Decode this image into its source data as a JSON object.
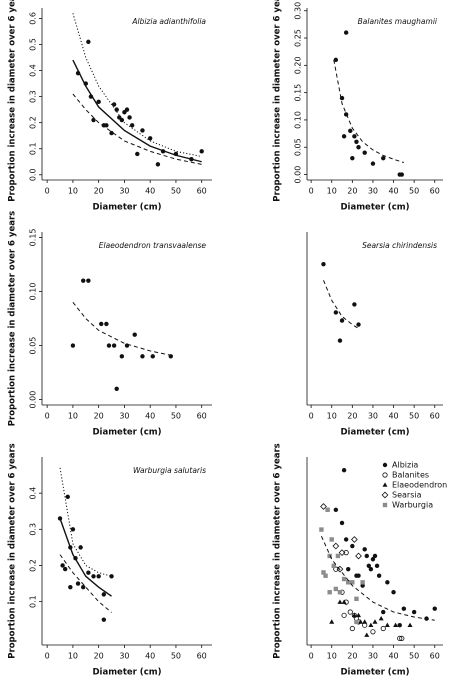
{
  "chart_data": [
    {
      "type": "scatter",
      "title": "Albizia adianthifolia",
      "xlabel": "Diameter (cm)",
      "ylabel": "Proportion increase in diameter over 6 years",
      "xlim": [
        -2,
        64
      ],
      "xticks": [
        0,
        10,
        20,
        30,
        40,
        50,
        60
      ],
      "ylim": [
        -0.02,
        0.64
      ],
      "yticks": [
        {
          "value": 0,
          "label": "0.0"
        },
        {
          "value": 0.1,
          "label": "0.1"
        },
        {
          "value": 0.2,
          "label": "0.2"
        },
        {
          "value": 0.3,
          "label": "0.3"
        },
        {
          "value": 0.4,
          "label": "0.4"
        },
        {
          "value": 0.5,
          "label": "0.5"
        },
        {
          "value": 0.6,
          "label": "0.6"
        }
      ],
      "series": [
        {
          "marker": "dot",
          "color": "#111111",
          "x": [
            12,
            15,
            16,
            17,
            18,
            20,
            22,
            23,
            25,
            26,
            27,
            28,
            29,
            30,
            31,
            32,
            33,
            35,
            37,
            40,
            43,
            45,
            50,
            56,
            60
          ],
          "values": [
            0.39,
            0.35,
            0.51,
            0.3,
            0.21,
            0.28,
            0.19,
            0.19,
            0.16,
            0.27,
            0.25,
            0.22,
            0.21,
            0.24,
            0.25,
            0.22,
            0.19,
            0.08,
            0.17,
            0.14,
            0.04,
            0.09,
            0.08,
            0.06,
            0.09
          ]
        },
        {
          "line": "solid",
          "color": "#111111",
          "x": [
            10,
            15,
            20,
            30,
            40,
            50,
            60
          ],
          "values": [
            0.44,
            0.34,
            0.26,
            0.17,
            0.11,
            0.075,
            0.05
          ]
        },
        {
          "line": "dotted",
          "color": "#111111",
          "x": [
            10,
            15,
            20,
            30,
            40,
            50,
            60
          ],
          "values": [
            0.62,
            0.45,
            0.34,
            0.2,
            0.13,
            0.09,
            0.07
          ]
        },
        {
          "line": "dashed",
          "color": "#111111",
          "x": [
            10,
            15,
            20,
            30,
            40,
            50,
            60
          ],
          "values": [
            0.31,
            0.25,
            0.2,
            0.13,
            0.09,
            0.06,
            0.04
          ]
        }
      ]
    },
    {
      "type": "scatter",
      "title": "Balanites maughamii",
      "xlabel": "Diameter (cm)",
      "ylabel": "Proportion increase in diameter over 6 years",
      "xlim": [
        -2,
        64
      ],
      "xticks": [
        0,
        10,
        20,
        30,
        40,
        50,
        60
      ],
      "ylim": [
        -0.01,
        0.305
      ],
      "yticks": [
        {
          "value": 0,
          "label": "0.00"
        },
        {
          "value": 0.05,
          "label": "0.05"
        },
        {
          "value": 0.1,
          "label": "0.10"
        },
        {
          "value": 0.15,
          "label": "0.15"
        },
        {
          "value": 0.2,
          "label": "0.20"
        },
        {
          "value": 0.25,
          "label": "0.25"
        },
        {
          "value": 0.3,
          "label": "0.30"
        }
      ],
      "series": [
        {
          "marker": "dot",
          "color": "#111111",
          "x": [
            12,
            15,
            16,
            17,
            17,
            19,
            20,
            21,
            22,
            23,
            26,
            30,
            35,
            43,
            44
          ],
          "values": [
            0.21,
            0.14,
            0.07,
            0.11,
            0.26,
            0.08,
            0.03,
            0.07,
            0.06,
            0.05,
            0.04,
            0.02,
            0.03,
            0,
            0
          ]
        },
        {
          "line": "dashed",
          "color": "#111111",
          "x": [
            11,
            15,
            20,
            25,
            30,
            35,
            40,
            45
          ],
          "values": [
            0.21,
            0.13,
            0.085,
            0.06,
            0.045,
            0.035,
            0.028,
            0.022
          ]
        }
      ]
    },
    {
      "type": "scatter",
      "title": "Elaeodendron transvaalense",
      "xlabel": "Diameter  (cm)",
      "ylabel": "Proportion increase in diameter over 6 years",
      "xlim": [
        -2,
        64
      ],
      "xticks": [
        0,
        10,
        20,
        30,
        40,
        50,
        60
      ],
      "ylim": [
        -0.005,
        0.155
      ],
      "yticks": [
        {
          "value": 0,
          "label": "0.00"
        },
        {
          "value": 0.05,
          "label": "0.05"
        },
        {
          "value": 0.1,
          "label": "0.10"
        },
        {
          "value": 0.15,
          "label": "0.15"
        }
      ],
      "series": [
        {
          "marker": "dot",
          "color": "#111111",
          "x": [
            10,
            14,
            16,
            21,
            23,
            24,
            26,
            27,
            29,
            31,
            34,
            37,
            41,
            48
          ],
          "values": [
            0.05,
            0.11,
            0.11,
            0.07,
            0.07,
            0.05,
            0.05,
            0.01,
            0.04,
            0.05,
            0.06,
            0.04,
            0.04,
            0.04
          ]
        },
        {
          "line": "dashed",
          "color": "#111111",
          "x": [
            10,
            15,
            20,
            30,
            40,
            48
          ],
          "values": [
            0.09,
            0.075,
            0.064,
            0.052,
            0.045,
            0.041
          ]
        }
      ]
    },
    {
      "type": "scatter",
      "title": "Searsia chirindensis",
      "xlabel": "Diameter  (cm)",
      "xlim": [
        -2,
        64
      ],
      "xticks": [
        0,
        10,
        20,
        30,
        40,
        50,
        60
      ],
      "ylim": [
        0.05,
        0.48
      ],
      "series": [
        {
          "marker": "dot",
          "color": "#111111",
          "x": [
            6,
            12,
            14,
            15,
            21,
            23
          ],
          "values": [
            0.4,
            0.28,
            0.21,
            0.26,
            0.3,
            0.25
          ]
        },
        {
          "line": "dashed",
          "color": "#111111",
          "x": [
            6,
            10,
            15,
            20,
            23
          ],
          "values": [
            0.36,
            0.31,
            0.27,
            0.25,
            0.24
          ]
        }
      ]
    },
    {
      "type": "scatter",
      "title": "Warburgia salutaris",
      "xlabel": "Diameter (cm)",
      "ylabel": "Proportion increase in diameter over 6 years",
      "xlim": [
        -2,
        64
      ],
      "xticks": [
        0,
        10,
        20,
        30,
        40,
        50,
        60
      ],
      "ylim": [
        -0.02,
        0.5
      ],
      "yticks": [
        {
          "value": 0.1,
          "label": "0.1"
        },
        {
          "value": 0.2,
          "label": "0.2"
        },
        {
          "value": 0.3,
          "label": "0.3"
        },
        {
          "value": 0.4,
          "label": "0.4"
        }
      ],
      "series": [
        {
          "marker": "dot",
          "color": "#111111",
          "x": [
            5,
            6,
            7,
            8,
            9,
            9,
            10,
            11,
            12,
            13,
            14,
            16,
            18,
            20,
            22,
            22,
            25
          ],
          "values": [
            0.33,
            0.2,
            0.19,
            0.39,
            0.14,
            0.25,
            0.3,
            0.22,
            0.15,
            0.25,
            0.14,
            0.18,
            0.17,
            0.17,
            0.05,
            0.12,
            0.17
          ]
        },
        {
          "line": "solid",
          "color": "#111111",
          "x": [
            5,
            10,
            15,
            20,
            25
          ],
          "values": [
            0.33,
            0.23,
            0.17,
            0.14,
            0.115
          ]
        },
        {
          "line": "dotted",
          "color": "#111111",
          "x": [
            5,
            10,
            15,
            20,
            25
          ],
          "values": [
            0.47,
            0.26,
            0.2,
            0.18,
            0.17
          ]
        },
        {
          "line": "dashed",
          "color": "#111111",
          "x": [
            5,
            10,
            15,
            20,
            25
          ],
          "values": [
            0.23,
            0.18,
            0.14,
            0.1,
            0.07
          ]
        }
      ]
    },
    {
      "type": "scatter",
      "xlabel": "Diameter (cm)",
      "ylabel": "Proportion increase in diameter over 6 years",
      "legend": "upper right",
      "xlim": [
        -2,
        64
      ],
      "xticks": [
        0,
        10,
        20,
        30,
        40,
        50,
        60
      ],
      "ylim": [
        -0.02,
        0.55
      ],
      "series": [
        {
          "name": "Albizia",
          "marker": "dot",
          "color": "#111111",
          "x": [
            12,
            15,
            16,
            17,
            18,
            20,
            22,
            23,
            25,
            26,
            27,
            28,
            29,
            30,
            31,
            32,
            33,
            35,
            37,
            40,
            43,
            45,
            50,
            56,
            60
          ],
          "values": [
            0.39,
            0.35,
            0.51,
            0.3,
            0.21,
            0.28,
            0.19,
            0.19,
            0.16,
            0.27,
            0.25,
            0.22,
            0.21,
            0.24,
            0.25,
            0.22,
            0.19,
            0.08,
            0.17,
            0.14,
            0.04,
            0.09,
            0.08,
            0.06,
            0.09
          ]
        },
        {
          "name": "Balanites",
          "marker": "circle",
          "color": "#111111",
          "x": [
            12,
            15,
            16,
            17,
            17,
            19,
            20,
            21,
            22,
            23,
            26,
            30,
            35,
            43,
            44
          ],
          "values": [
            0.21,
            0.14,
            0.07,
            0.11,
            0.26,
            0.08,
            0.03,
            0.07,
            0.06,
            0.05,
            0.04,
            0.02,
            0.03,
            0,
            0
          ]
        },
        {
          "name": "Elaeodendron",
          "marker": "triangle",
          "color": "#111111",
          "x": [
            10,
            14,
            16,
            21,
            23,
            24,
            26,
            27,
            29,
            31,
            34,
            37,
            41,
            48
          ],
          "values": [
            0.05,
            0.11,
            0.11,
            0.07,
            0.07,
            0.05,
            0.05,
            0.01,
            0.04,
            0.05,
            0.06,
            0.04,
            0.04,
            0.04
          ]
        },
        {
          "name": "Searsia",
          "marker": "diamond",
          "color": "#111111",
          "x": [
            6,
            12,
            14,
            15,
            21,
            23
          ],
          "values": [
            0.4,
            0.28,
            0.21,
            0.26,
            0.3,
            0.25
          ]
        },
        {
          "name": "Warburgia",
          "marker": "square",
          "color": "#8c8c8c",
          "x": [
            5,
            6,
            7,
            8,
            9,
            9,
            10,
            11,
            12,
            13,
            14,
            16,
            18,
            20,
            22,
            22,
            25
          ],
          "values": [
            0.33,
            0.2,
            0.19,
            0.39,
            0.14,
            0.25,
            0.3,
            0.22,
            0.15,
            0.25,
            0.14,
            0.18,
            0.17,
            0.17,
            0.05,
            0.12,
            0.17
          ]
        },
        {
          "line": "dashed",
          "color": "#111111",
          "x": [
            5,
            10,
            20,
            30,
            40,
            50,
            60
          ],
          "values": [
            0.31,
            0.24,
            0.16,
            0.11,
            0.08,
            0.065,
            0.055
          ]
        }
      ]
    }
  ]
}
